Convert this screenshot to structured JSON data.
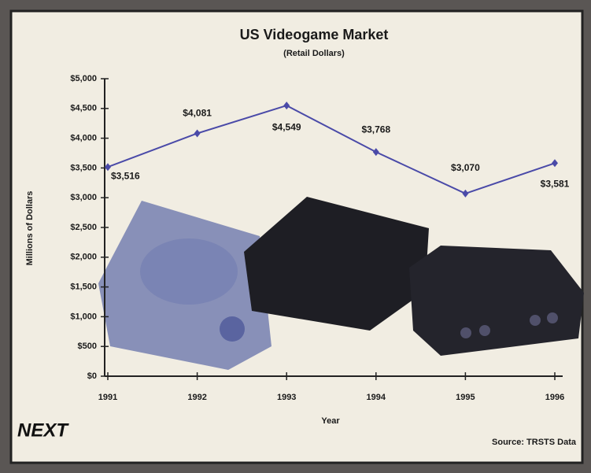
{
  "chart_data": {
    "type": "line",
    "title": "US Videogame Market",
    "subtitle": "(Retail Dollars)",
    "x_label": "Year",
    "y_label": "Millions of Dollars",
    "source": "Source: TRSTS Data",
    "logo": "NEXT",
    "categories": [
      "1991",
      "1992",
      "1993",
      "1994",
      "1995",
      "1996"
    ],
    "series": [
      {
        "name": "US Videogame Market",
        "color": "#4a4aa8",
        "values": [
          3516,
          4081,
          4549,
          3768,
          3070,
          3581
        ],
        "value_labels": [
          "$3,516",
          "$4,081",
          "$4,549",
          "$3,768",
          "$3,070",
          "$3,581"
        ]
      }
    ],
    "ylim": [
      0,
      5000
    ],
    "yticks": [
      {
        "value": 0,
        "label": "$0"
      },
      {
        "value": 500,
        "label": "$500"
      },
      {
        "value": 1000,
        "label": "$1,000"
      },
      {
        "value": 1500,
        "label": "$1,500"
      },
      {
        "value": 2000,
        "label": "$2,000"
      },
      {
        "value": 2500,
        "label": "$2,500"
      },
      {
        "value": 3000,
        "label": "$3,000"
      },
      {
        "value": 3500,
        "label": "$3,500"
      },
      {
        "value": 4000,
        "label": "$4,000"
      },
      {
        "value": 4500,
        "label": "$4,500"
      },
      {
        "value": 5000,
        "label": "$5,000"
      }
    ],
    "grid": false
  }
}
